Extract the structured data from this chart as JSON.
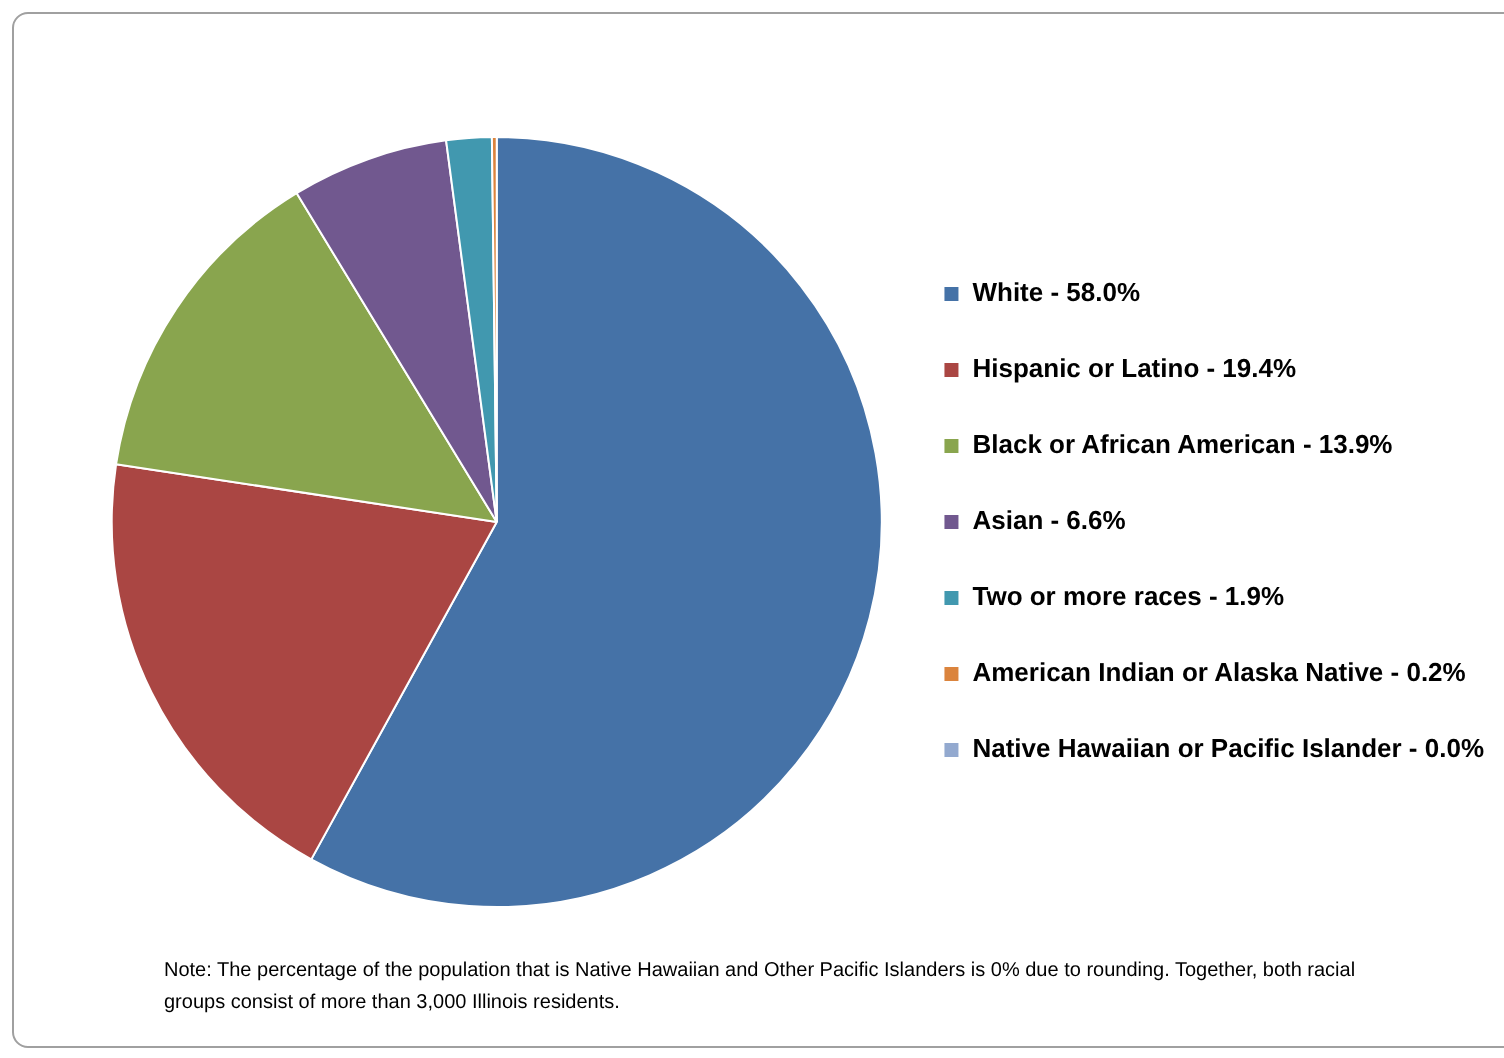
{
  "chart_data": {
    "type": "pie",
    "categories": [
      "White - 58.0%",
      "Hispanic or Latino - 19.4%",
      "Black or African American - 13.9%",
      "Asian - 6.6%",
      "Two or more races - 1.9%",
      "American Indian or Alaska Native - 0.2%",
      "Native Hawaiian or Pacific Islander - 0.0%"
    ],
    "values": [
      58.0,
      19.4,
      13.9,
      6.6,
      1.9,
      0.2,
      0.0
    ],
    "colors": [
      "#4572a7",
      "#aa4643",
      "#89a54e",
      "#71588f",
      "#4198af",
      "#db843d",
      "#93a9cf"
    ],
    "legend": "right",
    "annotations": [
      "Note: The percentage of the population that is Native Hawaiian and Other Pacific Islanders is 0% due to rounding. Together, both racial groups consist of more than 3,000 Illinois residents."
    ]
  }
}
